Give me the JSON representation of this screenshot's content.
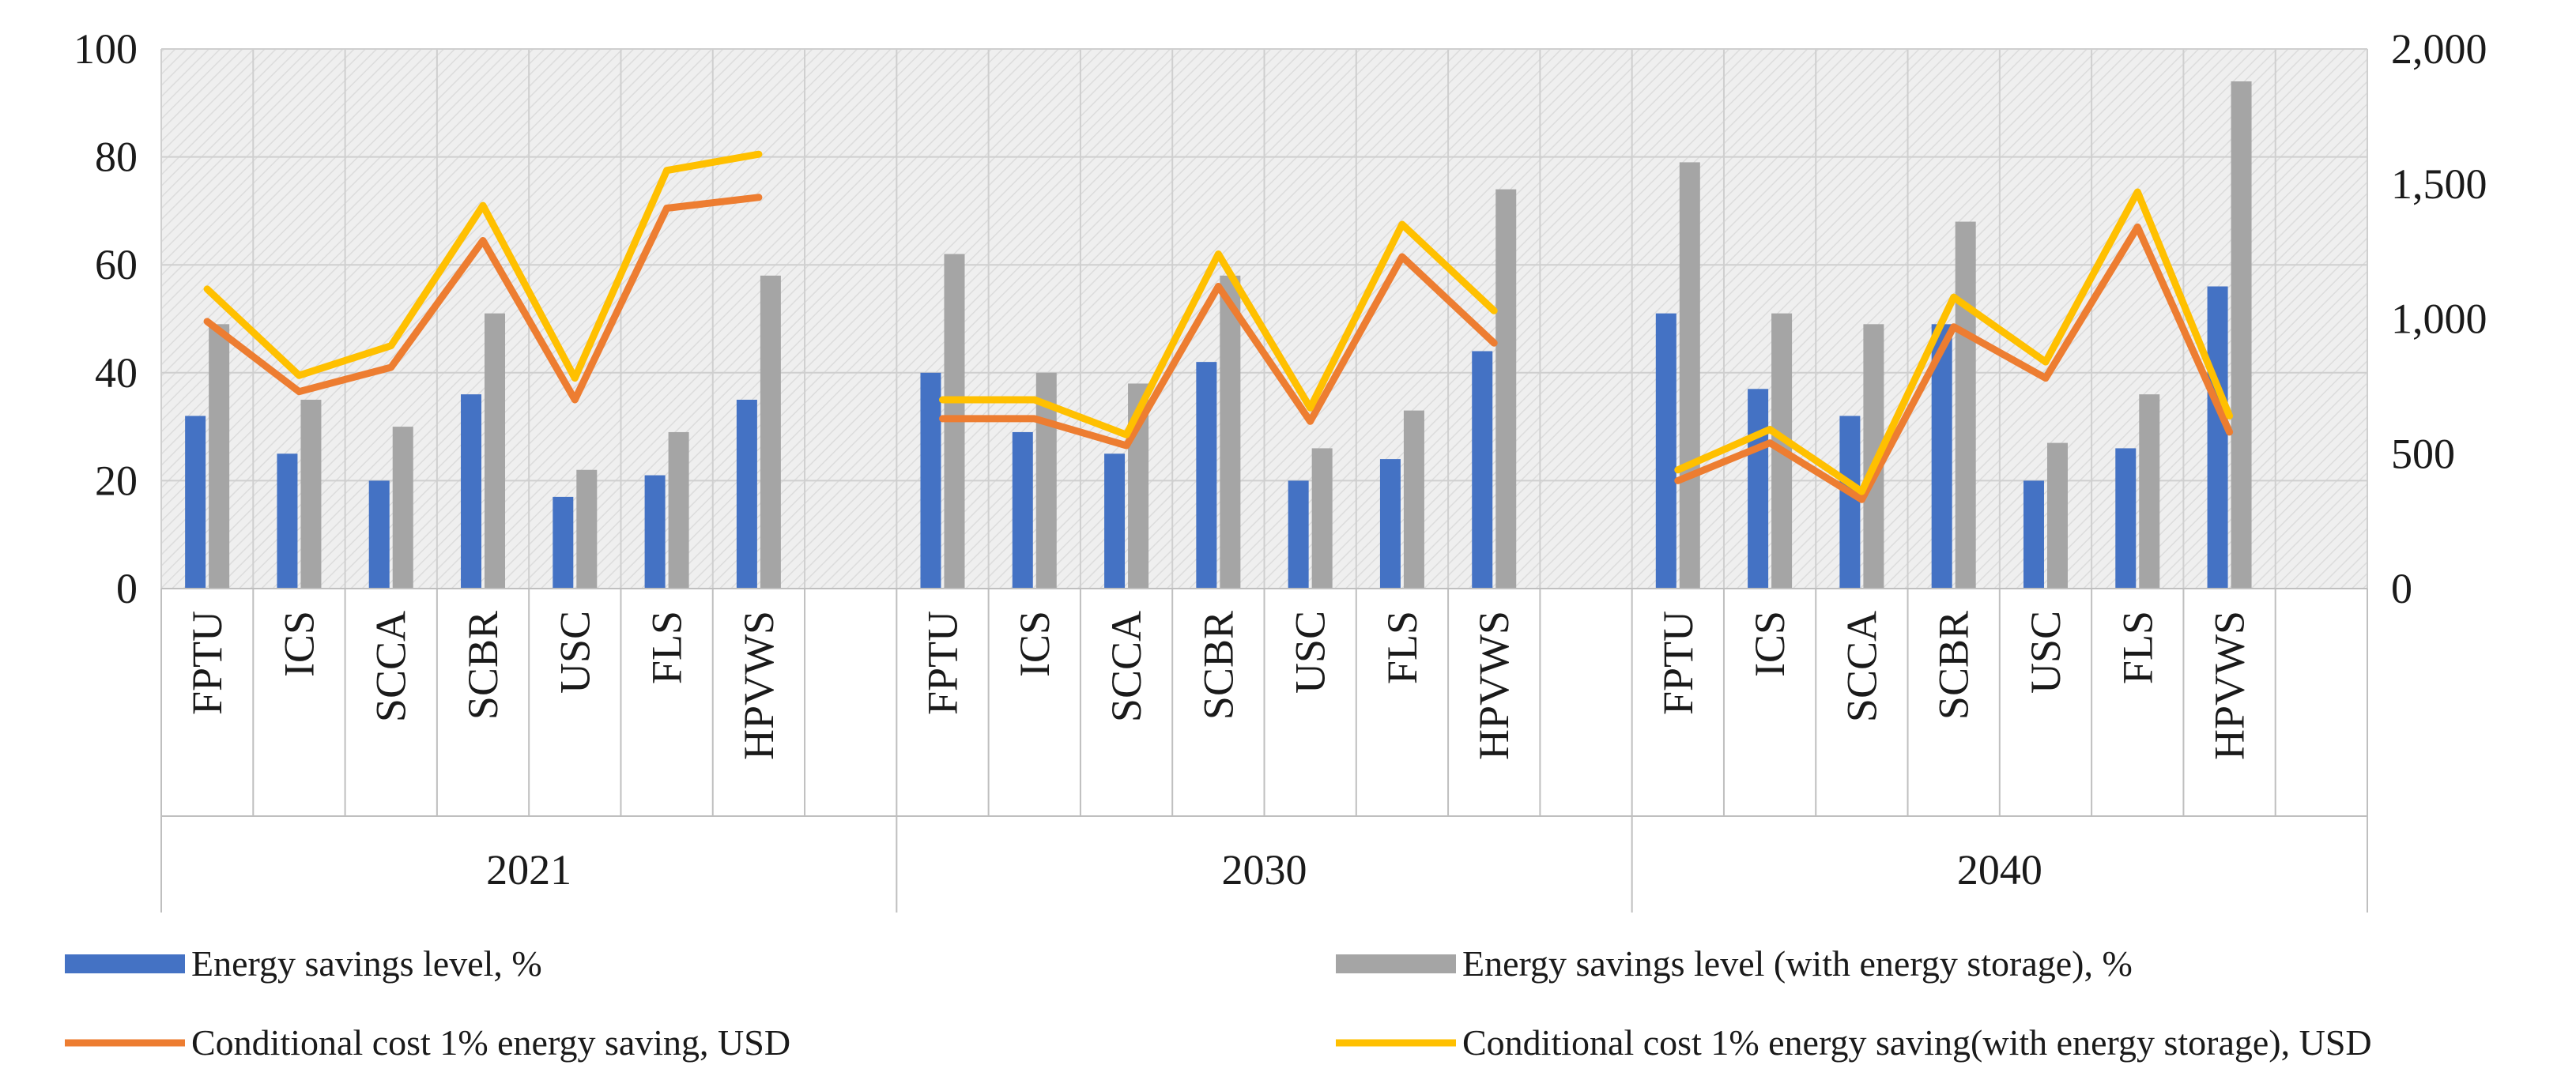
{
  "chart_data": {
    "type": "bar",
    "title": "",
    "groups": [
      "2021",
      "2030",
      "2040"
    ],
    "categories": [
      "FPTU",
      "ICS",
      "SCCA",
      "SCBR",
      "USC",
      "FLS",
      "HPVWS"
    ],
    "y_left": {
      "ylim": [
        0,
        100
      ],
      "ticks": [
        "0",
        "20",
        "40",
        "60",
        "80",
        "100"
      ],
      "tick_values": [
        0,
        20,
        40,
        60,
        80,
        100
      ]
    },
    "y_right": {
      "ylim": [
        0,
        2000
      ],
      "ticks": [
        "0",
        "500",
        "1,000",
        "1,500",
        "2,000"
      ],
      "tick_values": [
        0,
        500,
        1000,
        1500,
        2000
      ]
    },
    "grid": true,
    "legend_position": "bottom",
    "colors": {
      "bar1": "#4472C4",
      "bar2": "#A5A5A5",
      "line1": "#ED7D31",
      "line2": "#FFC000",
      "grid": "#cfcfcf",
      "plot_bg": "#efefef"
    },
    "series": [
      {
        "name": "Energy savings level, %",
        "kind": "bar",
        "axis": "left",
        "color_key": "bar1",
        "values": [
          [
            32,
            25,
            20,
            36,
            17,
            21,
            35
          ],
          [
            40,
            29,
            25,
            42,
            20,
            24,
            44
          ],
          [
            51,
            37,
            32,
            49,
            20,
            26,
            56
          ]
        ]
      },
      {
        "name": "Energy savings level (with energy storage), %",
        "kind": "bar",
        "axis": "left",
        "color_key": "bar2",
        "values": [
          [
            49,
            35,
            30,
            51,
            22,
            29,
            58
          ],
          [
            62,
            40,
            38,
            58,
            26,
            33,
            74
          ],
          [
            79,
            51,
            49,
            68,
            27,
            36,
            94
          ]
        ]
      },
      {
        "name": "Conditional cost 1% energy saving, USD",
        "kind": "line",
        "axis": "right",
        "color_key": "line1",
        "values": [
          [
            990,
            730,
            820,
            1290,
            700,
            1410,
            1450
          ],
          [
            630,
            630,
            530,
            1120,
            620,
            1230,
            910
          ],
          [
            400,
            540,
            330,
            970,
            780,
            1340,
            580
          ]
        ]
      },
      {
        "name": "Conditional cost 1% energy saving(with energy storage), USD",
        "kind": "line",
        "axis": "right",
        "color_key": "line2",
        "values": [
          [
            1110,
            790,
            900,
            1420,
            780,
            1550,
            1610
          ],
          [
            700,
            700,
            570,
            1240,
            670,
            1350,
            1030
          ],
          [
            440,
            590,
            360,
            1080,
            840,
            1470,
            640
          ]
        ]
      }
    ]
  }
}
